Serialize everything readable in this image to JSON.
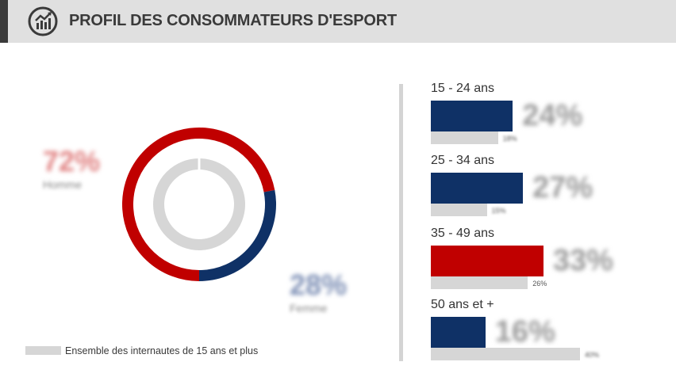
{
  "header": {
    "title": "PROFIL DES CONSOMMATEURS D'ESPORT",
    "icon": "chart-growth-icon"
  },
  "colors": {
    "red": "#c00000",
    "navy": "#0f3166",
    "grey": "#d6d6d6"
  },
  "chart_data": [
    {
      "type": "pie",
      "variant": "donut",
      "slices": [
        {
          "label": "Homme",
          "value": 72,
          "display": "72%",
          "color": "#c00000"
        },
        {
          "label": "Femme",
          "value": 28,
          "display": "28%",
          "color": "#0f3166"
        }
      ],
      "reference_ring": {
        "label": "Ensemble des internautes de 15 ans et plus",
        "color": "#d6d6d6"
      }
    },
    {
      "type": "bar",
      "orientation": "horizontal",
      "categories": [
        "15 - 24 ans",
        "25 - 34 ans",
        "35 - 49 ans",
        "50 ans et +"
      ],
      "series": [
        {
          "values": [
            24,
            27,
            33,
            16
          ],
          "display": [
            "24%",
            "27%",
            "33%",
            "16%"
          ],
          "colors": [
            "#0f3166",
            "#0f3166",
            "#c00000",
            "#0f3166"
          ]
        },
        {
          "name": "Ensemble des internautes de 15 ans et plus",
          "values": [
            18,
            15,
            26,
            40
          ],
          "display": [
            "18%",
            "15%",
            "26%",
            "40%"
          ],
          "color": "#d6d6d6"
        }
      ]
    }
  ],
  "legend": {
    "label": "Ensemble des internautes de 15 ans et plus"
  }
}
